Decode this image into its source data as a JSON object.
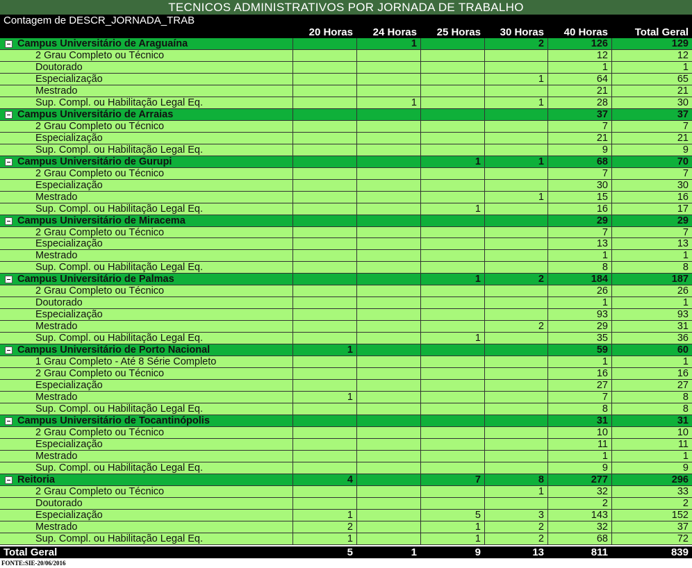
{
  "title": "TECNICOS ADMINISTRATIVOS POR JORNADA DE TRABALHO",
  "subtitle": "Contagem de DESCR_JORNADA_TRAB",
  "columns": [
    "20 Horas",
    "24 Horas",
    "25 Horas",
    "30 Horas",
    "40 Horas",
    "Total Geral"
  ],
  "groups": [
    {
      "label": "Campus Universitário de Araguaína",
      "values": [
        "",
        "1",
        "",
        "2",
        "126",
        "129"
      ],
      "rows": [
        {
          "label": "2 Grau Completo ou Técnico",
          "values": [
            "",
            "",
            "",
            "",
            "12",
            "12"
          ]
        },
        {
          "label": "Doutorado",
          "values": [
            "",
            "",
            "",
            "",
            "1",
            "1"
          ]
        },
        {
          "label": "Especialização",
          "values": [
            "",
            "",
            "",
            "1",
            "64",
            "65"
          ]
        },
        {
          "label": "Mestrado",
          "values": [
            "",
            "",
            "",
            "",
            "21",
            "21"
          ]
        },
        {
          "label": "Sup. Compl. ou Habilitação Legal Eq.",
          "values": [
            "",
            "1",
            "",
            "1",
            "28",
            "30"
          ]
        }
      ]
    },
    {
      "label": "Campus Universitário de Arraias",
      "values": [
        "",
        "",
        "",
        "",
        "37",
        "37"
      ],
      "rows": [
        {
          "label": "2 Grau Completo ou Técnico",
          "values": [
            "",
            "",
            "",
            "",
            "7",
            "7"
          ]
        },
        {
          "label": "Especialização",
          "values": [
            "",
            "",
            "",
            "",
            "21",
            "21"
          ]
        },
        {
          "label": "Sup. Compl. ou Habilitação Legal Eq.",
          "values": [
            "",
            "",
            "",
            "",
            "9",
            "9"
          ]
        }
      ]
    },
    {
      "label": "Campus Universitário de Gurupi",
      "values": [
        "",
        "",
        "1",
        "1",
        "68",
        "70"
      ],
      "rows": [
        {
          "label": "2 Grau Completo ou Técnico",
          "values": [
            "",
            "",
            "",
            "",
            "7",
            "7"
          ]
        },
        {
          "label": "Especialização",
          "values": [
            "",
            "",
            "",
            "",
            "30",
            "30"
          ]
        },
        {
          "label": "Mestrado",
          "values": [
            "",
            "",
            "",
            "1",
            "15",
            "16"
          ]
        },
        {
          "label": "Sup. Compl. ou Habilitação Legal Eq.",
          "values": [
            "",
            "",
            "1",
            "",
            "16",
            "17"
          ]
        }
      ]
    },
    {
      "label": "Campus Universitário de Miracema",
      "values": [
        "",
        "",
        "",
        "",
        "29",
        "29"
      ],
      "rows": [
        {
          "label": "2 Grau Completo ou Técnico",
          "values": [
            "",
            "",
            "",
            "",
            "7",
            "7"
          ]
        },
        {
          "label": "Especialização",
          "values": [
            "",
            "",
            "",
            "",
            "13",
            "13"
          ]
        },
        {
          "label": "Mestrado",
          "values": [
            "",
            "",
            "",
            "",
            "1",
            "1"
          ]
        },
        {
          "label": "Sup. Compl. ou Habilitação Legal Eq.",
          "values": [
            "",
            "",
            "",
            "",
            "8",
            "8"
          ]
        }
      ]
    },
    {
      "label": "Campus Universitário de Palmas",
      "values": [
        "",
        "",
        "1",
        "2",
        "184",
        "187"
      ],
      "rows": [
        {
          "label": "2 Grau Completo ou Técnico",
          "values": [
            "",
            "",
            "",
            "",
            "26",
            "26"
          ]
        },
        {
          "label": "Doutorado",
          "values": [
            "",
            "",
            "",
            "",
            "1",
            "1"
          ]
        },
        {
          "label": "Especialização",
          "values": [
            "",
            "",
            "",
            "",
            "93",
            "93"
          ]
        },
        {
          "label": "Mestrado",
          "values": [
            "",
            "",
            "",
            "2",
            "29",
            "31"
          ]
        },
        {
          "label": "Sup. Compl. ou Habilitação Legal Eq.",
          "values": [
            "",
            "",
            "1",
            "",
            "35",
            "36"
          ]
        }
      ]
    },
    {
      "label": "Campus Universitário de Porto Nacional",
      "values": [
        "1",
        "",
        "",
        "",
        "59",
        "60"
      ],
      "rows": [
        {
          "label": "1 Grau Completo - Até 8 Série Completo",
          "values": [
            "",
            "",
            "",
            "",
            "1",
            "1"
          ]
        },
        {
          "label": "2 Grau Completo ou Técnico",
          "values": [
            "",
            "",
            "",
            "",
            "16",
            "16"
          ]
        },
        {
          "label": "Especialização",
          "values": [
            "",
            "",
            "",
            "",
            "27",
            "27"
          ]
        },
        {
          "label": "Mestrado",
          "values": [
            "1",
            "",
            "",
            "",
            "7",
            "8"
          ]
        },
        {
          "label": "Sup. Compl. ou Habilitação Legal Eq.",
          "values": [
            "",
            "",
            "",
            "",
            "8",
            "8"
          ]
        }
      ]
    },
    {
      "label": "Campus Universitário de Tocantinópolis",
      "values": [
        "",
        "",
        "",
        "",
        "31",
        "31"
      ],
      "rows": [
        {
          "label": "2 Grau Completo ou Técnico",
          "values": [
            "",
            "",
            "",
            "",
            "10",
            "10"
          ]
        },
        {
          "label": "Especialização",
          "values": [
            "",
            "",
            "",
            "",
            "11",
            "11"
          ]
        },
        {
          "label": "Mestrado",
          "values": [
            "",
            "",
            "",
            "",
            "1",
            "1"
          ]
        },
        {
          "label": "Sup. Compl. ou Habilitação Legal Eq.",
          "values": [
            "",
            "",
            "",
            "",
            "9",
            "9"
          ]
        }
      ]
    },
    {
      "label": "Reitoria",
      "values": [
        "4",
        "",
        "7",
        "8",
        "277",
        "296"
      ],
      "rows": [
        {
          "label": "2 Grau Completo ou Técnico",
          "values": [
            "",
            "",
            "",
            "1",
            "32",
            "33"
          ]
        },
        {
          "label": "Doutorado",
          "values": [
            "",
            "",
            "",
            "",
            "2",
            "2"
          ]
        },
        {
          "label": "Especialização",
          "values": [
            "1",
            "",
            "5",
            "3",
            "143",
            "152"
          ]
        },
        {
          "label": "Mestrado",
          "values": [
            "2",
            "",
            "1",
            "2",
            "32",
            "37"
          ]
        },
        {
          "label": "Sup. Compl. ou Habilitação Legal Eq.",
          "values": [
            "1",
            "",
            "1",
            "2",
            "68",
            "72"
          ]
        }
      ]
    }
  ],
  "total": {
    "label": "Total Geral",
    "values": [
      "5",
      "1",
      "9",
      "13",
      "811",
      "839"
    ]
  },
  "source": "FONTE:SIE-20/06/2016",
  "colors": {
    "title_bg": "#3d6b3d",
    "group_bg": "#0fb03a",
    "detail_bg": "#a8f87a",
    "header_bg": "#000000"
  }
}
